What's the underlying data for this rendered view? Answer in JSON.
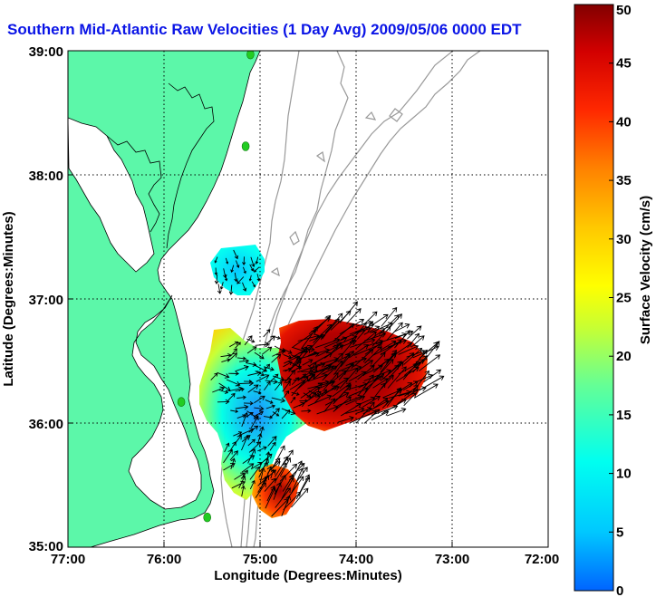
{
  "title": "Southern Mid-Atlantic Raw Velocities (1 Day Avg) 2009/05/06 0000 EDT",
  "map": {
    "xlabel": "Longitude (Degrees:Minutes)",
    "ylabel": "Latitude (Degrees:Minutes)",
    "x_ticks": [
      "77:00",
      "76:00",
      "75:00",
      "74:00",
      "73:00",
      "72:00"
    ],
    "y_ticks": [
      "39:00",
      "38:00",
      "37:00",
      "36:00",
      "35:00"
    ],
    "lon_range": [
      -77,
      -72
    ],
    "lat_range": [
      35,
      39
    ],
    "grid": "dotted",
    "land_color": "#5cf7a9",
    "water_color": "#ffffff",
    "coastline_color": "#000000",
    "bathymetry_color": "#999999",
    "station_color": "#22cc22"
  },
  "colorbar": {
    "label": "Surface Velocity (cm/s)",
    "ticks": [
      "0",
      "5",
      "10",
      "15",
      "20",
      "25",
      "30",
      "35",
      "40",
      "45",
      "50"
    ],
    "range": [
      0,
      50
    ],
    "colormap": [
      "#0064ff",
      "#00c8ff",
      "#00fff0",
      "#64ff96",
      "#c8ff32",
      "#ffff00",
      "#ffc800",
      "#ff8200",
      "#ff2800",
      "#d20000",
      "#820000"
    ]
  },
  "stations": [
    {
      "lon": -75.1,
      "lat": 38.97
    },
    {
      "lon": -75.15,
      "lat": 38.23
    },
    {
      "lon": -75.82,
      "lat": 36.17
    },
    {
      "lon": -75.55,
      "lat": 35.24
    }
  ]
}
